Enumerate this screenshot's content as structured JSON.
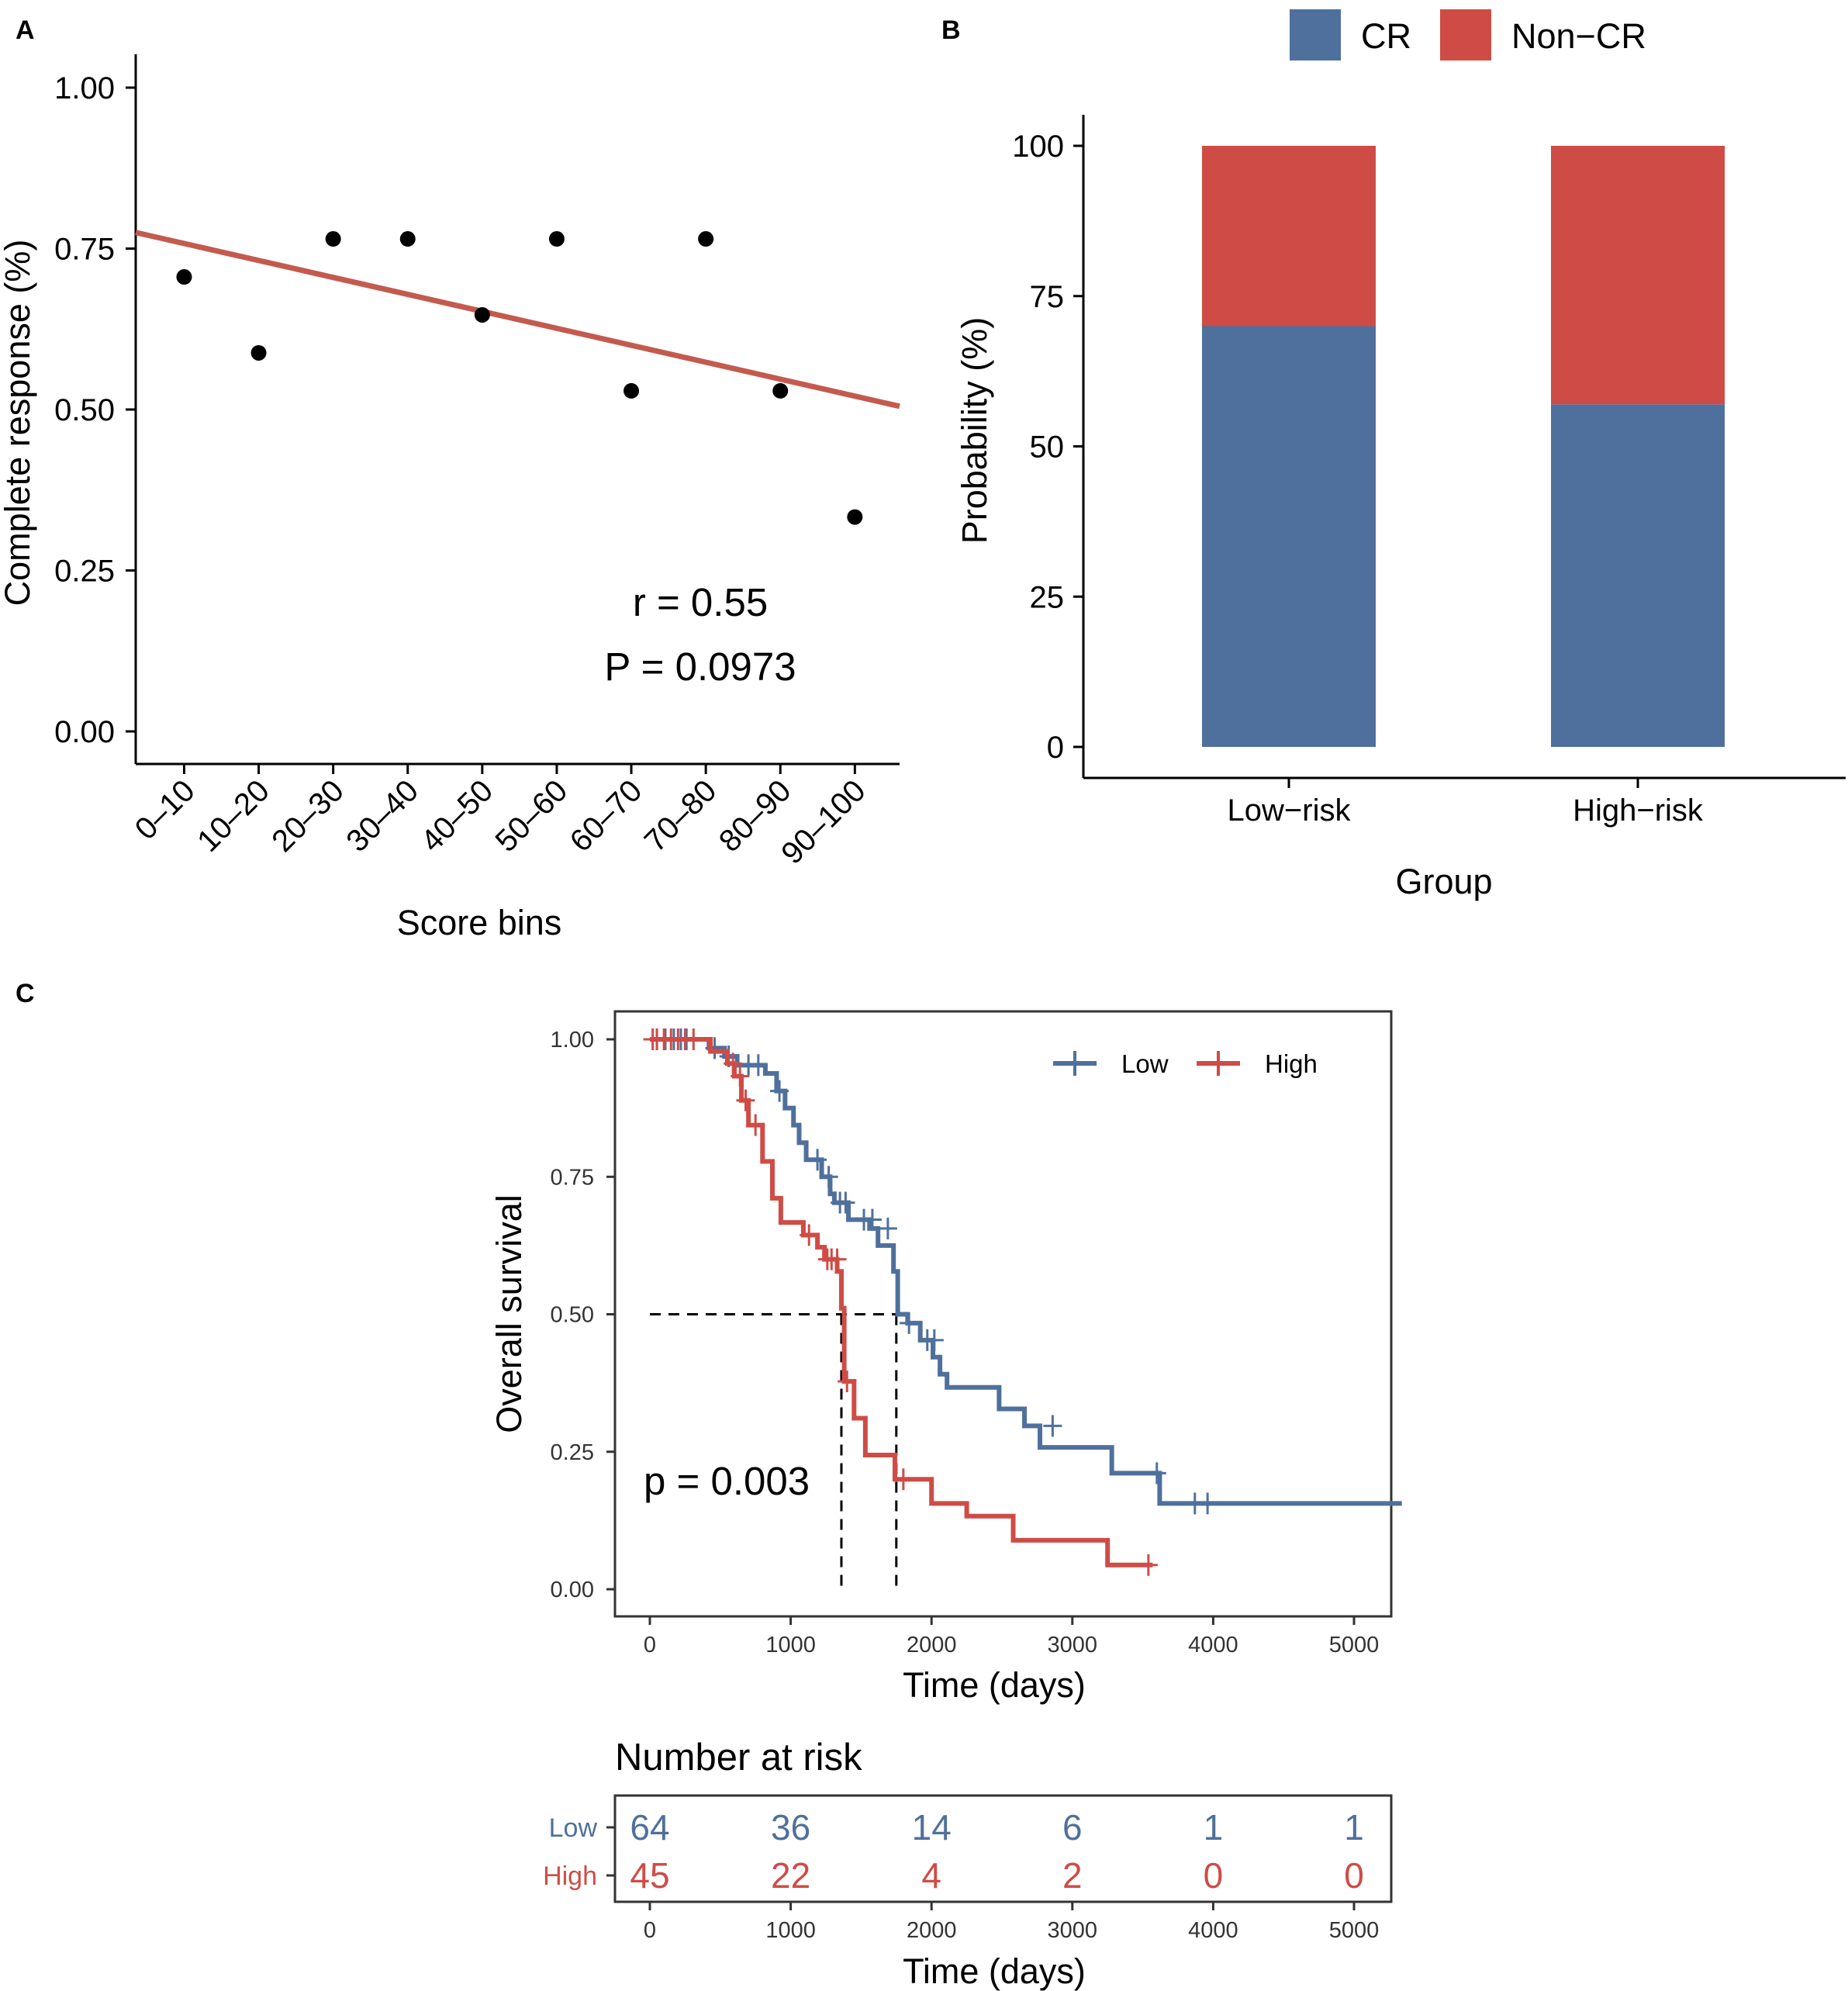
{
  "colors": {
    "blue": "#4F709C",
    "red": "#CF4C46",
    "fit": "#C45A4E",
    "black": "#000000"
  },
  "chart_data": [
    {
      "panel": "A",
      "type": "scatter",
      "xlabel": "Score bins",
      "ylabel": "Complete response (%)",
      "categories": [
        "0–10",
        "10–20",
        "20–30",
        "30–40",
        "40–50",
        "50–60",
        "60–70",
        "70–80",
        "80–90",
        "90–100"
      ],
      "values": [
        0.706,
        0.588,
        0.765,
        0.765,
        0.647,
        0.765,
        0.529,
        0.765,
        0.529,
        0.333
      ],
      "ylim": [
        0,
        1.0
      ],
      "yticks": [
        "0.00",
        "0.25",
        "0.50",
        "0.75",
        "1.00"
      ],
      "fit_line": {
        "x": [
          0.35,
          10.6
        ],
        "y": [
          0.775,
          0.505
        ]
      },
      "annotations": {
        "r": "r = 0.55",
        "p": "P  = 0.0973"
      }
    },
    {
      "panel": "B",
      "type": "bar",
      "stacked": true,
      "xlabel": "Group",
      "ylabel": "Probability (%)",
      "categories": [
        "Low−risk",
        "High−risk"
      ],
      "series": [
        {
          "name": "CR",
          "values": [
            70,
            57
          ]
        },
        {
          "name": "Non−CR",
          "values": [
            30,
            43
          ]
        }
      ],
      "ylim": [
        0,
        100
      ],
      "yticks": [
        "0",
        "25",
        "50",
        "75",
        "100"
      ],
      "legend": "top"
    },
    {
      "panel": "C",
      "type": "line",
      "subtype": "kaplan-meier",
      "xlabel": "Time (days)",
      "ylabel": "Overall survival",
      "xlim": [
        -260,
        5300
      ],
      "ylim": [
        -0.05,
        1.05
      ],
      "xticks": [
        "0",
        "1000",
        "2000",
        "3000",
        "4000",
        "5000"
      ],
      "yticks": [
        "0.00",
        "0.25",
        "0.50",
        "0.75",
        "1.00"
      ],
      "legend": [
        "Low",
        "High"
      ],
      "pvalue": "p = 0.003",
      "median": {
        "y": 0.5,
        "high_x": 1360,
        "low_x": 1750
      },
      "series": [
        {
          "name": "Low",
          "steps": [
            [
              0,
              1.0
            ],
            [
              360,
              1.0
            ],
            [
              420,
              0.984
            ],
            [
              530,
              0.969
            ],
            [
              620,
              0.953
            ],
            [
              820,
              0.938
            ],
            [
              900,
              0.906
            ],
            [
              960,
              0.875
            ],
            [
              1020,
              0.844
            ],
            [
              1060,
              0.812
            ],
            [
              1110,
              0.781
            ],
            [
              1220,
              0.75
            ],
            [
              1280,
              0.719
            ],
            [
              1310,
              0.703
            ],
            [
              1410,
              0.672
            ],
            [
              1560,
              0.656
            ],
            [
              1620,
              0.625
            ],
            [
              1730,
              0.578
            ],
            [
              1760,
              0.5
            ],
            [
              1830,
              0.484
            ],
            [
              1920,
              0.453
            ],
            [
              2010,
              0.422
            ],
            [
              2060,
              0.391
            ],
            [
              2110,
              0.367
            ],
            [
              2480,
              0.328
            ],
            [
              2660,
              0.297
            ],
            [
              2770,
              0.258
            ],
            [
              3280,
              0.211
            ],
            [
              3620,
              0.156
            ],
            [
              5340,
              0.156
            ]
          ],
          "censors": [
            [
              50,
              1.0
            ],
            [
              110,
              1.0
            ],
            [
              170,
              1.0
            ],
            [
              220,
              1.0
            ],
            [
              260,
              1.0
            ],
            [
              460,
              0.984
            ],
            [
              560,
              0.969
            ],
            [
              700,
              0.953
            ],
            [
              770,
              0.953
            ],
            [
              920,
              0.906
            ],
            [
              1190,
              0.781
            ],
            [
              1270,
              0.75
            ],
            [
              1350,
              0.703
            ],
            [
              1390,
              0.703
            ],
            [
              1520,
              0.672
            ],
            [
              1580,
              0.672
            ],
            [
              1690,
              0.656
            ],
            [
              1840,
              0.484
            ],
            [
              1970,
              0.453
            ],
            [
              2020,
              0.453
            ],
            [
              2860,
              0.297
            ],
            [
              3600,
              0.211
            ],
            [
              3870,
              0.156
            ],
            [
              3960,
              0.156
            ]
          ]
        },
        {
          "name": "High",
          "steps": [
            [
              0,
              1.0
            ],
            [
              380,
              1.0
            ],
            [
              430,
              0.978
            ],
            [
              550,
              0.956
            ],
            [
              600,
              0.933
            ],
            [
              650,
              0.889
            ],
            [
              700,
              0.844
            ],
            [
              800,
              0.778
            ],
            [
              870,
              0.711
            ],
            [
              930,
              0.667
            ],
            [
              1090,
              0.644
            ],
            [
              1190,
              0.622
            ],
            [
              1240,
              0.6
            ],
            [
              1330,
              0.578
            ],
            [
              1360,
              0.511
            ],
            [
              1380,
              0.378
            ],
            [
              1450,
              0.311
            ],
            [
              1530,
              0.244
            ],
            [
              1740,
              0.2
            ],
            [
              2000,
              0.156
            ],
            [
              2250,
              0.133
            ],
            [
              2580,
              0.089
            ],
            [
              3250,
              0.044
            ],
            [
              3570,
              0.044
            ]
          ],
          "censors": [
            [
              20,
              1.0
            ],
            [
              50,
              1.0
            ],
            [
              100,
              1.0
            ],
            [
              150,
              1.0
            ],
            [
              200,
              1.0
            ],
            [
              250,
              1.0
            ],
            [
              310,
              1.0
            ],
            [
              590,
              0.956
            ],
            [
              640,
              0.933
            ],
            [
              680,
              0.889
            ],
            [
              750,
              0.844
            ],
            [
              1130,
              0.644
            ],
            [
              1260,
              0.6
            ],
            [
              1290,
              0.6
            ],
            [
              1330,
              0.6
            ],
            [
              1400,
              0.378
            ],
            [
              1800,
              0.2
            ],
            [
              3540,
              0.044
            ]
          ]
        }
      ],
      "risk_table": {
        "title": "Number at risk",
        "times": [
          "0",
          "1000",
          "2000",
          "3000",
          "4000",
          "5000"
        ],
        "rows": [
          {
            "name": "Low",
            "values": [
              "64",
              "36",
              "14",
              "6",
              "1",
              "1"
            ]
          },
          {
            "name": "High",
            "values": [
              "45",
              "22",
              "4",
              "2",
              "0",
              "0"
            ]
          }
        ]
      }
    }
  ]
}
